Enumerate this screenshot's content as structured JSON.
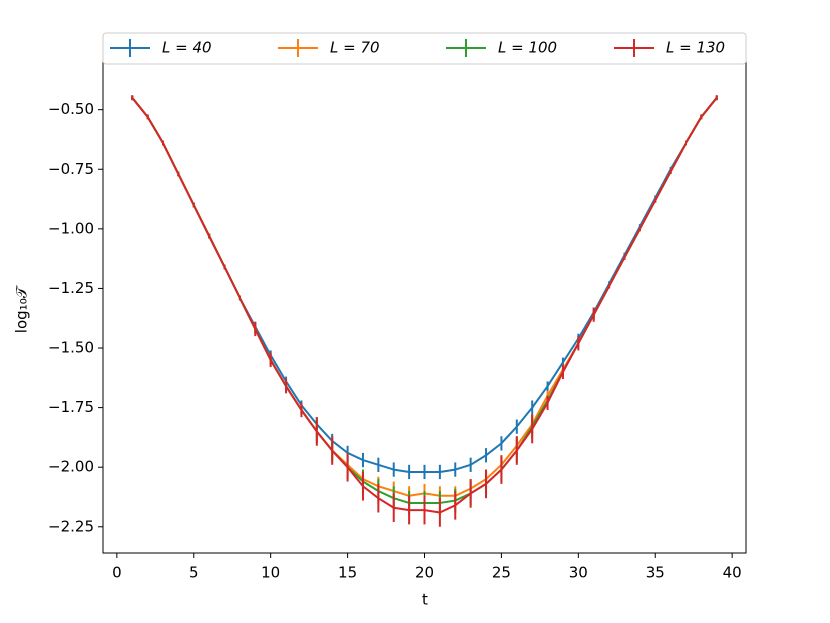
{
  "chart_data": {
    "type": "errorbar-line",
    "xlabel": "t",
    "ylabel": "log₁₀𝒯",
    "x": [
      1,
      2,
      3,
      4,
      5,
      6,
      7,
      8,
      9,
      10,
      11,
      12,
      13,
      14,
      15,
      16,
      17,
      18,
      19,
      20,
      21,
      22,
      23,
      24,
      25,
      26,
      27,
      28,
      29,
      30,
      31,
      32,
      33,
      34,
      35,
      36,
      37,
      38,
      39
    ],
    "series": [
      {
        "name": "L = 40",
        "color": "#1f77b4",
        "values": [
          -0.45,
          -0.53,
          -0.64,
          -0.77,
          -0.9,
          -1.03,
          -1.16,
          -1.29,
          -1.41,
          -1.53,
          -1.64,
          -1.74,
          -1.82,
          -1.89,
          -1.94,
          -1.97,
          -1.99,
          -2.01,
          -2.02,
          -2.02,
          -2.02,
          -2.01,
          -1.99,
          -1.95,
          -1.9,
          -1.83,
          -1.75,
          -1.66,
          -1.56,
          -1.46,
          -1.35,
          -1.23,
          -1.11,
          -0.99,
          -0.87,
          -0.75,
          -0.64,
          -0.53,
          -0.45
        ],
        "errors": [
          0.01,
          0.01,
          0.01,
          0.01,
          0.01,
          0.01,
          0.01,
          0.01,
          0.02,
          0.02,
          0.02,
          0.02,
          0.03,
          0.03,
          0.03,
          0.03,
          0.03,
          0.03,
          0.03,
          0.03,
          0.03,
          0.03,
          0.03,
          0.03,
          0.03,
          0.03,
          0.03,
          0.02,
          0.02,
          0.02,
          0.02,
          0.01,
          0.01,
          0.01,
          0.01,
          0.01,
          0.01,
          0.01,
          0.01
        ]
      },
      {
        "name": "L = 70",
        "color": "#ff7f0e",
        "values": [
          -0.45,
          -0.53,
          -0.64,
          -0.77,
          -0.9,
          -1.03,
          -1.16,
          -1.29,
          -1.42,
          -1.55,
          -1.66,
          -1.76,
          -1.85,
          -1.93,
          -1.99,
          -2.05,
          -2.08,
          -2.1,
          -2.12,
          -2.11,
          -2.12,
          -2.12,
          -2.09,
          -2.05,
          -1.99,
          -1.91,
          -1.82,
          -1.7,
          -1.59,
          -1.48,
          -1.36,
          -1.24,
          -1.12,
          -1.0,
          -0.88,
          -0.76,
          -0.64,
          -0.53,
          -0.45
        ],
        "errors": [
          0.01,
          0.01,
          0.01,
          0.01,
          0.01,
          0.01,
          0.01,
          0.01,
          0.02,
          0.02,
          0.02,
          0.02,
          0.04,
          0.04,
          0.04,
          0.04,
          0.04,
          0.04,
          0.04,
          0.04,
          0.04,
          0.04,
          0.04,
          0.04,
          0.04,
          0.04,
          0.04,
          0.02,
          0.02,
          0.02,
          0.02,
          0.01,
          0.01,
          0.01,
          0.01,
          0.01,
          0.01,
          0.01,
          0.01
        ]
      },
      {
        "name": "L = 100",
        "color": "#2ca02c",
        "values": [
          -0.45,
          -0.53,
          -0.64,
          -0.77,
          -0.9,
          -1.03,
          -1.16,
          -1.29,
          -1.42,
          -1.55,
          -1.66,
          -1.76,
          -1.85,
          -1.93,
          -2.0,
          -2.06,
          -2.1,
          -2.13,
          -2.15,
          -2.15,
          -2.15,
          -2.14,
          -2.11,
          -2.07,
          -2.01,
          -1.93,
          -1.83,
          -1.72,
          -1.6,
          -1.48,
          -1.36,
          -1.24,
          -1.12,
          -1.0,
          -0.88,
          -0.76,
          -0.64,
          -0.53,
          -0.45
        ],
        "errors": [
          0.01,
          0.01,
          0.01,
          0.01,
          0.01,
          0.01,
          0.01,
          0.01,
          0.02,
          0.02,
          0.02,
          0.02,
          0.05,
          0.05,
          0.05,
          0.05,
          0.05,
          0.05,
          0.05,
          0.05,
          0.05,
          0.05,
          0.05,
          0.05,
          0.05,
          0.05,
          0.05,
          0.02,
          0.02,
          0.02,
          0.02,
          0.01,
          0.01,
          0.01,
          0.01,
          0.01,
          0.01,
          0.01,
          0.01
        ]
      },
      {
        "name": "L = 130",
        "color": "#d62728",
        "values": [
          -0.45,
          -0.53,
          -0.64,
          -0.77,
          -0.9,
          -1.03,
          -1.16,
          -1.29,
          -1.42,
          -1.55,
          -1.66,
          -1.76,
          -1.85,
          -1.93,
          -2.0,
          -2.08,
          -2.13,
          -2.17,
          -2.18,
          -2.18,
          -2.19,
          -2.16,
          -2.11,
          -2.07,
          -2.01,
          -1.93,
          -1.84,
          -1.73,
          -1.6,
          -1.48,
          -1.36,
          -1.24,
          -1.12,
          -1.0,
          -0.88,
          -0.76,
          -0.64,
          -0.53,
          -0.45
        ],
        "errors": [
          0.01,
          0.01,
          0.01,
          0.01,
          0.01,
          0.01,
          0.01,
          0.01,
          0.03,
          0.03,
          0.03,
          0.03,
          0.06,
          0.06,
          0.06,
          0.06,
          0.06,
          0.06,
          0.06,
          0.06,
          0.06,
          0.06,
          0.06,
          0.06,
          0.06,
          0.06,
          0.06,
          0.03,
          0.03,
          0.03,
          0.03,
          0.01,
          0.01,
          0.01,
          0.01,
          0.01,
          0.01,
          0.01,
          0.01
        ]
      }
    ],
    "xlim": [
      -0.9,
      40.9
    ],
    "xticks": [
      0,
      5,
      10,
      15,
      20,
      25,
      30,
      35,
      40
    ],
    "ylim": [
      -2.36,
      -0.3
    ],
    "yticks": [
      {
        "value": -2.25,
        "label": "−2.25"
      },
      {
        "value": -2.0,
        "label": "−2.00"
      },
      {
        "value": -1.75,
        "label": "−1.75"
      },
      {
        "value": -1.5,
        "label": "−1.50"
      },
      {
        "value": -1.25,
        "label": "−1.25"
      },
      {
        "value": -1.0,
        "label": "−1.00"
      },
      {
        "value": -0.75,
        "label": "−0.75"
      },
      {
        "value": -0.5,
        "label": "−0.50"
      }
    ],
    "grid": false,
    "legend": "top"
  }
}
